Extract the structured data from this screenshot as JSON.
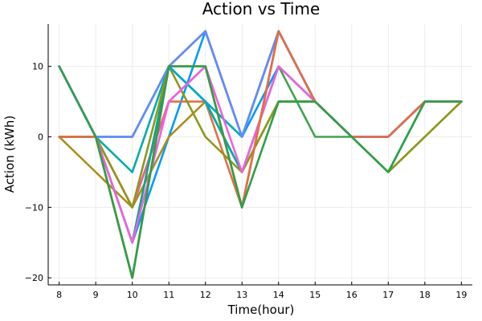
{
  "chart_data": {
    "type": "line",
    "title": "Action vs Time",
    "xlabel": "Time(hour)",
    "ylabel": "Action (kWh)",
    "x": [
      8,
      9,
      10,
      11,
      12,
      13,
      14,
      15,
      16,
      17,
      18,
      19
    ],
    "xticks": [
      "8",
      "9",
      "10",
      "11",
      "12",
      "13",
      "14",
      "15",
      "16",
      "17",
      "18",
      "19"
    ],
    "yticks": [
      {
        "value": -20,
        "label": "−20"
      },
      {
        "value": -10,
        "label": "−10"
      },
      {
        "value": 0,
        "label": "0"
      },
      {
        "value": 10,
        "label": "10"
      }
    ],
    "xlim": [
      7.7,
      19.3
    ],
    "ylim": [
      -21,
      16
    ],
    "grid": true,
    "legend": "none",
    "series": [
      {
        "color": "#009AFA",
        "values": [
          10,
          0,
          -15,
          0,
          15,
          0,
          10,
          5,
          0,
          0,
          5,
          5
        ]
      },
      {
        "color": "#E36F47",
        "values": [
          0,
          0,
          -10,
          5,
          5,
          -10,
          15,
          5,
          0,
          0,
          5,
          5
        ]
      },
      {
        "color": "#3EA44E",
        "values": [
          10,
          0,
          -20,
          10,
          5,
          -5,
          10,
          0,
          0,
          -5,
          5,
          5
        ]
      },
      {
        "color": "#C371D2",
        "values": [
          10,
          0,
          -15,
          10,
          15,
          0,
          15,
          5,
          0,
          0,
          5,
          5
        ]
      },
      {
        "color": "#AC8E18",
        "values": [
          0,
          -5,
          -10,
          0,
          5,
          -5,
          5,
          5,
          0,
          -5,
          0,
          5
        ]
      },
      {
        "color": "#00AAAE",
        "values": [
          10,
          0,
          -5,
          10,
          5,
          -5,
          10,
          5,
          0,
          0,
          5,
          5
        ]
      },
      {
        "color": "#ED5E93",
        "values": [
          0,
          0,
          -10,
          5,
          10,
          -10,
          15,
          5,
          0,
          0,
          5,
          5
        ]
      },
      {
        "color": "#C68225",
        "values": [
          0,
          0,
          -20,
          10,
          10,
          -10,
          15,
          5,
          0,
          0,
          5,
          5
        ]
      },
      {
        "color": "#00A98D",
        "values": [
          10,
          0,
          -15,
          10,
          5,
          0,
          15,
          5,
          0,
          0,
          5,
          5
        ]
      },
      {
        "color": "#8E971D",
        "values": [
          0,
          0,
          -10,
          10,
          0,
          -5,
          5,
          5,
          0,
          -5,
          0,
          5
        ]
      },
      {
        "color": "#00A9CD",
        "values": [
          10,
          0,
          0,
          10,
          5,
          0,
          15,
          5,
          0,
          0,
          5,
          5
        ]
      },
      {
        "color": "#9B7FE9",
        "values": [
          10,
          0,
          0,
          10,
          15,
          0,
          15,
          5,
          0,
          0,
          5,
          5
        ]
      },
      {
        "color": "#618DF6",
        "values": [
          10,
          0,
          0,
          10,
          15,
          0,
          15,
          5,
          0,
          0,
          5,
          5
        ]
      },
      {
        "color": "#F061DD",
        "values": [
          10,
          0,
          -15,
          5,
          10,
          -5,
          10,
          5,
          0,
          0,
          5,
          5
        ]
      },
      {
        "color": "#E06F47",
        "values": [
          0,
          0,
          -20,
          10,
          10,
          -10,
          15,
          5,
          0,
          0,
          5,
          5
        ]
      },
      {
        "color": "#2D9F4A",
        "values": [
          10,
          0,
          -20,
          10,
          10,
          -10,
          5,
          5,
          0,
          -5,
          5,
          5
        ]
      }
    ]
  }
}
